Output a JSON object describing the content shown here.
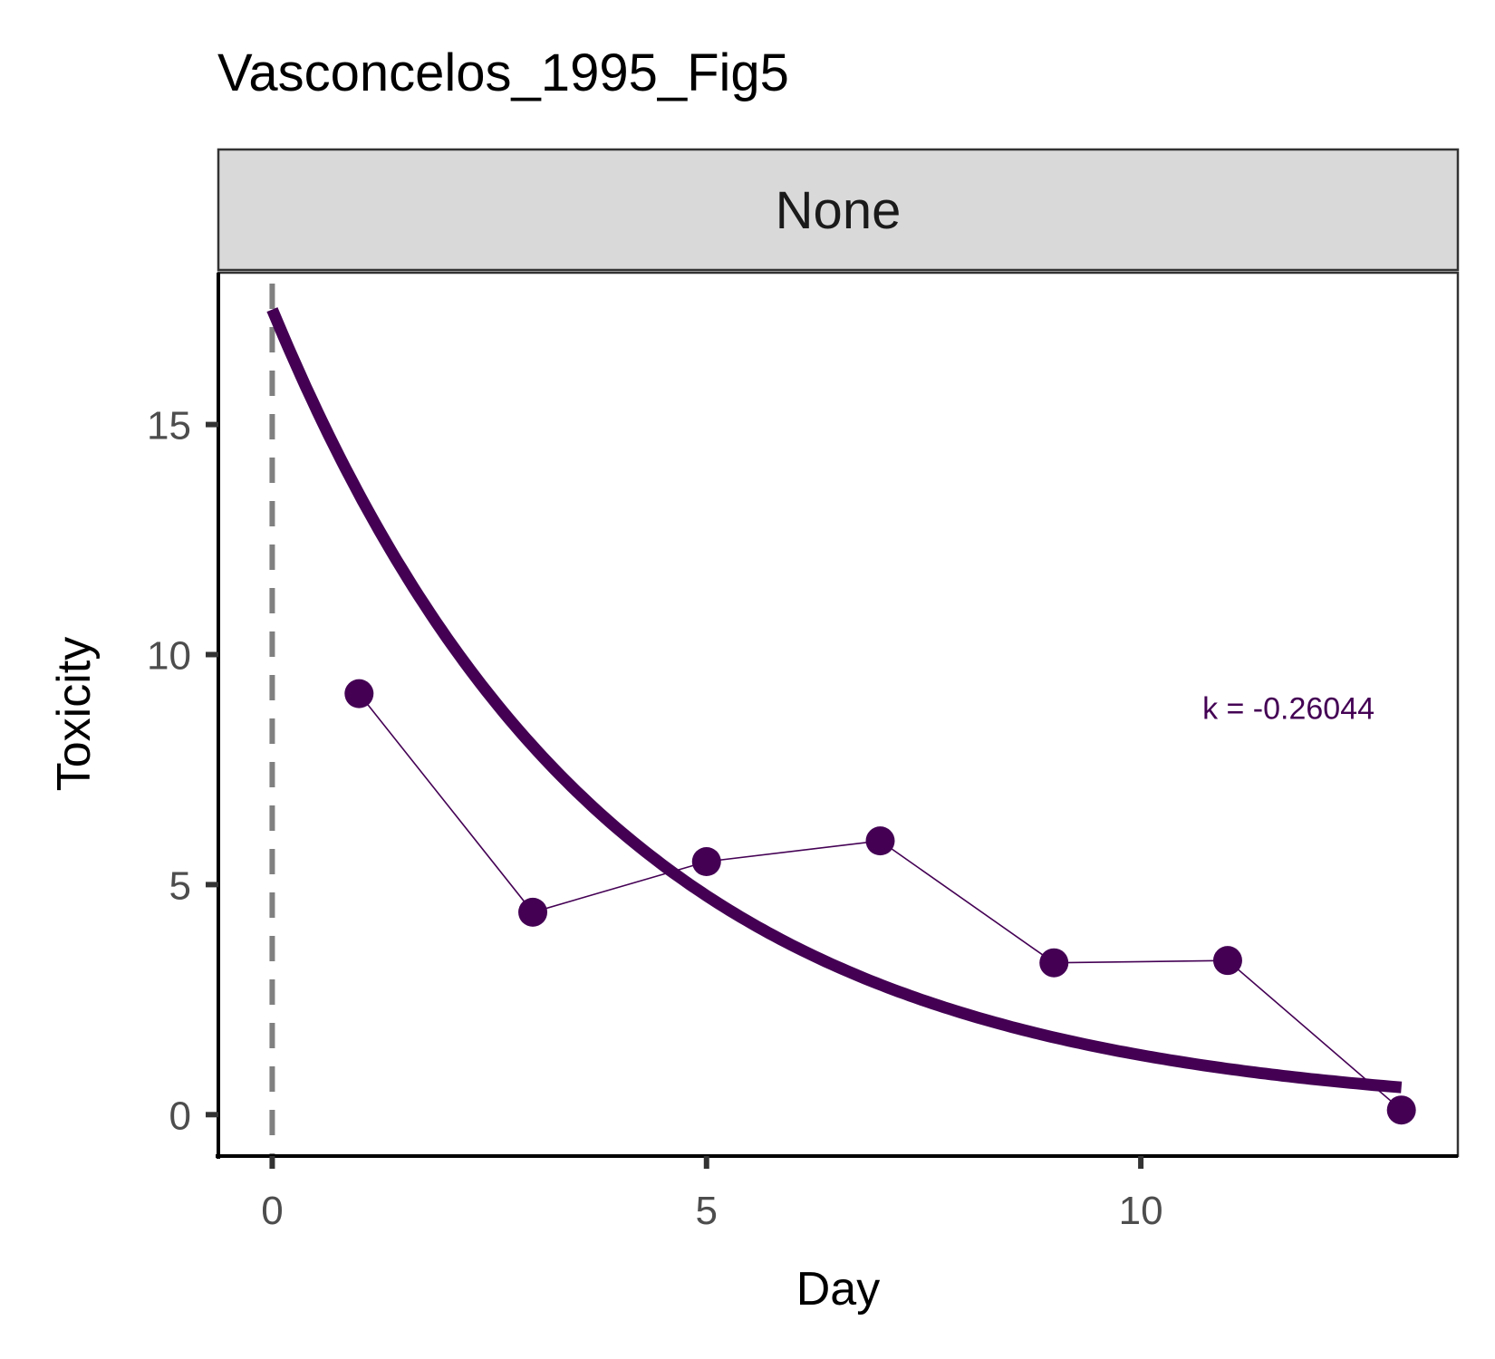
{
  "chart_data": {
    "type": "line",
    "title": "Vasconcelos_1995_Fig5",
    "facet_label": "None",
    "xlabel": "Day",
    "ylabel": "Toxicity",
    "xlim": [
      -0.62,
      13.65
    ],
    "ylim": [
      -0.9,
      18.3
    ],
    "x_ticks": [
      0,
      5,
      10
    ],
    "y_ticks": [
      0,
      5,
      10,
      15
    ],
    "grid": false,
    "vline_x": 0,
    "series": [
      {
        "kind": "observed",
        "x": [
          1,
          3,
          5,
          7,
          9,
          11,
          13
        ],
        "y": [
          9.15,
          4.4,
          5.5,
          5.95,
          3.3,
          3.35,
          0.1
        ]
      },
      {
        "kind": "fit",
        "model": "exponential",
        "y0": 17.5,
        "k": -0.26044,
        "x_range": [
          0,
          13
        ]
      }
    ],
    "annotation": {
      "text": "k = -0.26044",
      "x": 11.7,
      "y": 8.6
    },
    "colors": {
      "series": "#440154",
      "vline": "#808080",
      "strip_fill": "#d9d9d9",
      "strip_border": "#333333",
      "axis": "#000000"
    }
  }
}
